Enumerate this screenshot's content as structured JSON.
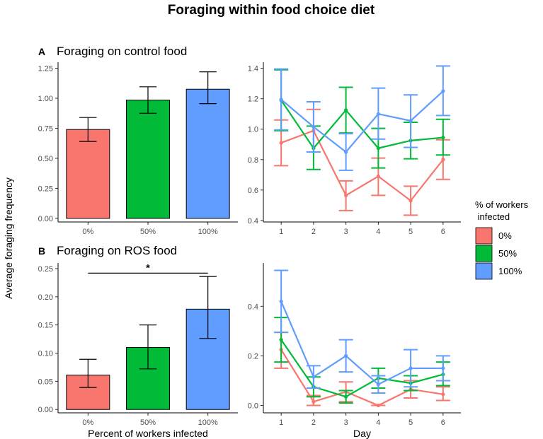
{
  "title": "Foraging within food choice diet",
  "y_label": "Average foraging frequency",
  "colors": {
    "0%": "#F8766D",
    "50%": "#00BA38",
    "100%": "#619CFF"
  },
  "legend": {
    "title_line1": "% of workers",
    "title_line2": " infected",
    "entries": [
      "0%",
      "50%",
      "100%"
    ]
  },
  "chart_data": [
    {
      "id": "A-bar",
      "type": "bar",
      "letter": "A",
      "title": "Foraging on control food",
      "categories": [
        "0%",
        "50%",
        "100%"
      ],
      "values": [
        0.74,
        0.985,
        1.075
      ],
      "err_low": [
        0.64,
        0.875,
        0.955
      ],
      "err_high": [
        0.84,
        1.095,
        1.22
      ],
      "ylim": [
        -0.03,
        1.3
      ],
      "yticks": [
        0.0,
        0.25,
        0.5,
        0.75,
        1.0,
        1.25
      ],
      "ytick_labels": [
        "0.00",
        "0.25",
        "0.50",
        "0.75",
        "1.00",
        "1.25"
      ],
      "xlabel": ""
    },
    {
      "id": "A-line",
      "type": "line",
      "x": [
        1,
        2,
        3,
        4,
        5,
        6
      ],
      "xticks": [
        "1",
        "2",
        "3",
        "4",
        "5",
        "6"
      ],
      "ylim": [
        0.39,
        1.44
      ],
      "yticks": [
        0.4,
        0.6,
        0.8,
        1.0,
        1.2,
        1.4
      ],
      "ytick_labels": [
        "0.4",
        "0.6",
        "0.8",
        "1.0",
        "1.2",
        "1.4"
      ],
      "xlabel": "",
      "series": [
        {
          "name": "0%",
          "values": [
            0.91,
            0.99,
            0.565,
            0.69,
            0.53,
            0.8
          ],
          "low": [
            0.76,
            0.85,
            0.465,
            0.565,
            0.435,
            0.67
          ],
          "high": [
            1.06,
            1.13,
            0.66,
            0.81,
            0.625,
            0.93
          ]
        },
        {
          "name": "50%",
          "values": [
            1.19,
            0.875,
            1.125,
            0.875,
            0.925,
            0.945
          ],
          "low": [
            0.99,
            0.735,
            0.975,
            0.745,
            0.805,
            0.83
          ],
          "high": [
            1.39,
            1.02,
            1.275,
            1.005,
            1.045,
            1.065
          ]
        },
        {
          "name": "100%",
          "values": [
            1.195,
            1.015,
            0.85,
            1.1,
            1.055,
            1.25
          ],
          "low": [
            0.995,
            0.85,
            0.73,
            0.935,
            0.88,
            1.09
          ],
          "high": [
            1.395,
            1.18,
            0.97,
            1.27,
            1.225,
            1.415
          ]
        }
      ]
    },
    {
      "id": "B-bar",
      "type": "bar",
      "letter": "B",
      "title": "Foraging on ROS food",
      "categories": [
        "0%",
        "50%",
        "100%"
      ],
      "values": [
        0.061,
        0.11,
        0.178
      ],
      "err_low": [
        0.039,
        0.072,
        0.126
      ],
      "err_high": [
        0.089,
        0.15,
        0.236
      ],
      "ylim": [
        -0.006,
        0.26
      ],
      "yticks": [
        0.0,
        0.05,
        0.1,
        0.15,
        0.2,
        0.25
      ],
      "ytick_labels": [
        "0.00",
        "0.05",
        "0.10",
        "0.15",
        "0.20",
        "0.25"
      ],
      "xlabel": "Percent of workers infected",
      "significance": {
        "from": "0%",
        "to": "100%",
        "y": 0.242,
        "label": "*"
      }
    },
    {
      "id": "B-line",
      "type": "line",
      "x": [
        1,
        2,
        3,
        4,
        5,
        6
      ],
      "xticks": [
        "1",
        "2",
        "3",
        "4",
        "5",
        "6"
      ],
      "ylim": [
        -0.03,
        0.575
      ],
      "yticks": [
        0.0,
        0.2,
        0.4
      ],
      "ytick_labels": [
        "0.0",
        "0.2",
        "0.4"
      ],
      "xlabel": "Day",
      "series": [
        {
          "name": "0%",
          "values": [
            0.225,
            0.015,
            0.055,
            0.0,
            0.065,
            0.045
          ],
          "low": [
            0.15,
            0.0,
            0.015,
            0.0,
            0.03,
            0.02
          ],
          "high": [
            0.295,
            0.04,
            0.095,
            0.0,
            0.1,
            0.075
          ]
        },
        {
          "name": "50%",
          "values": [
            0.265,
            0.075,
            0.035,
            0.11,
            0.09,
            0.125
          ],
          "low": [
            0.175,
            0.035,
            0.01,
            0.07,
            0.06,
            0.08
          ],
          "high": [
            0.355,
            0.115,
            0.06,
            0.15,
            0.12,
            0.175
          ]
        },
        {
          "name": "100%",
          "values": [
            0.42,
            0.115,
            0.2,
            0.085,
            0.15,
            0.15
          ],
          "low": [
            0.295,
            0.07,
            0.135,
            0.05,
            0.075,
            0.1
          ],
          "high": [
            0.545,
            0.16,
            0.265,
            0.12,
            0.225,
            0.2
          ]
        }
      ]
    }
  ]
}
